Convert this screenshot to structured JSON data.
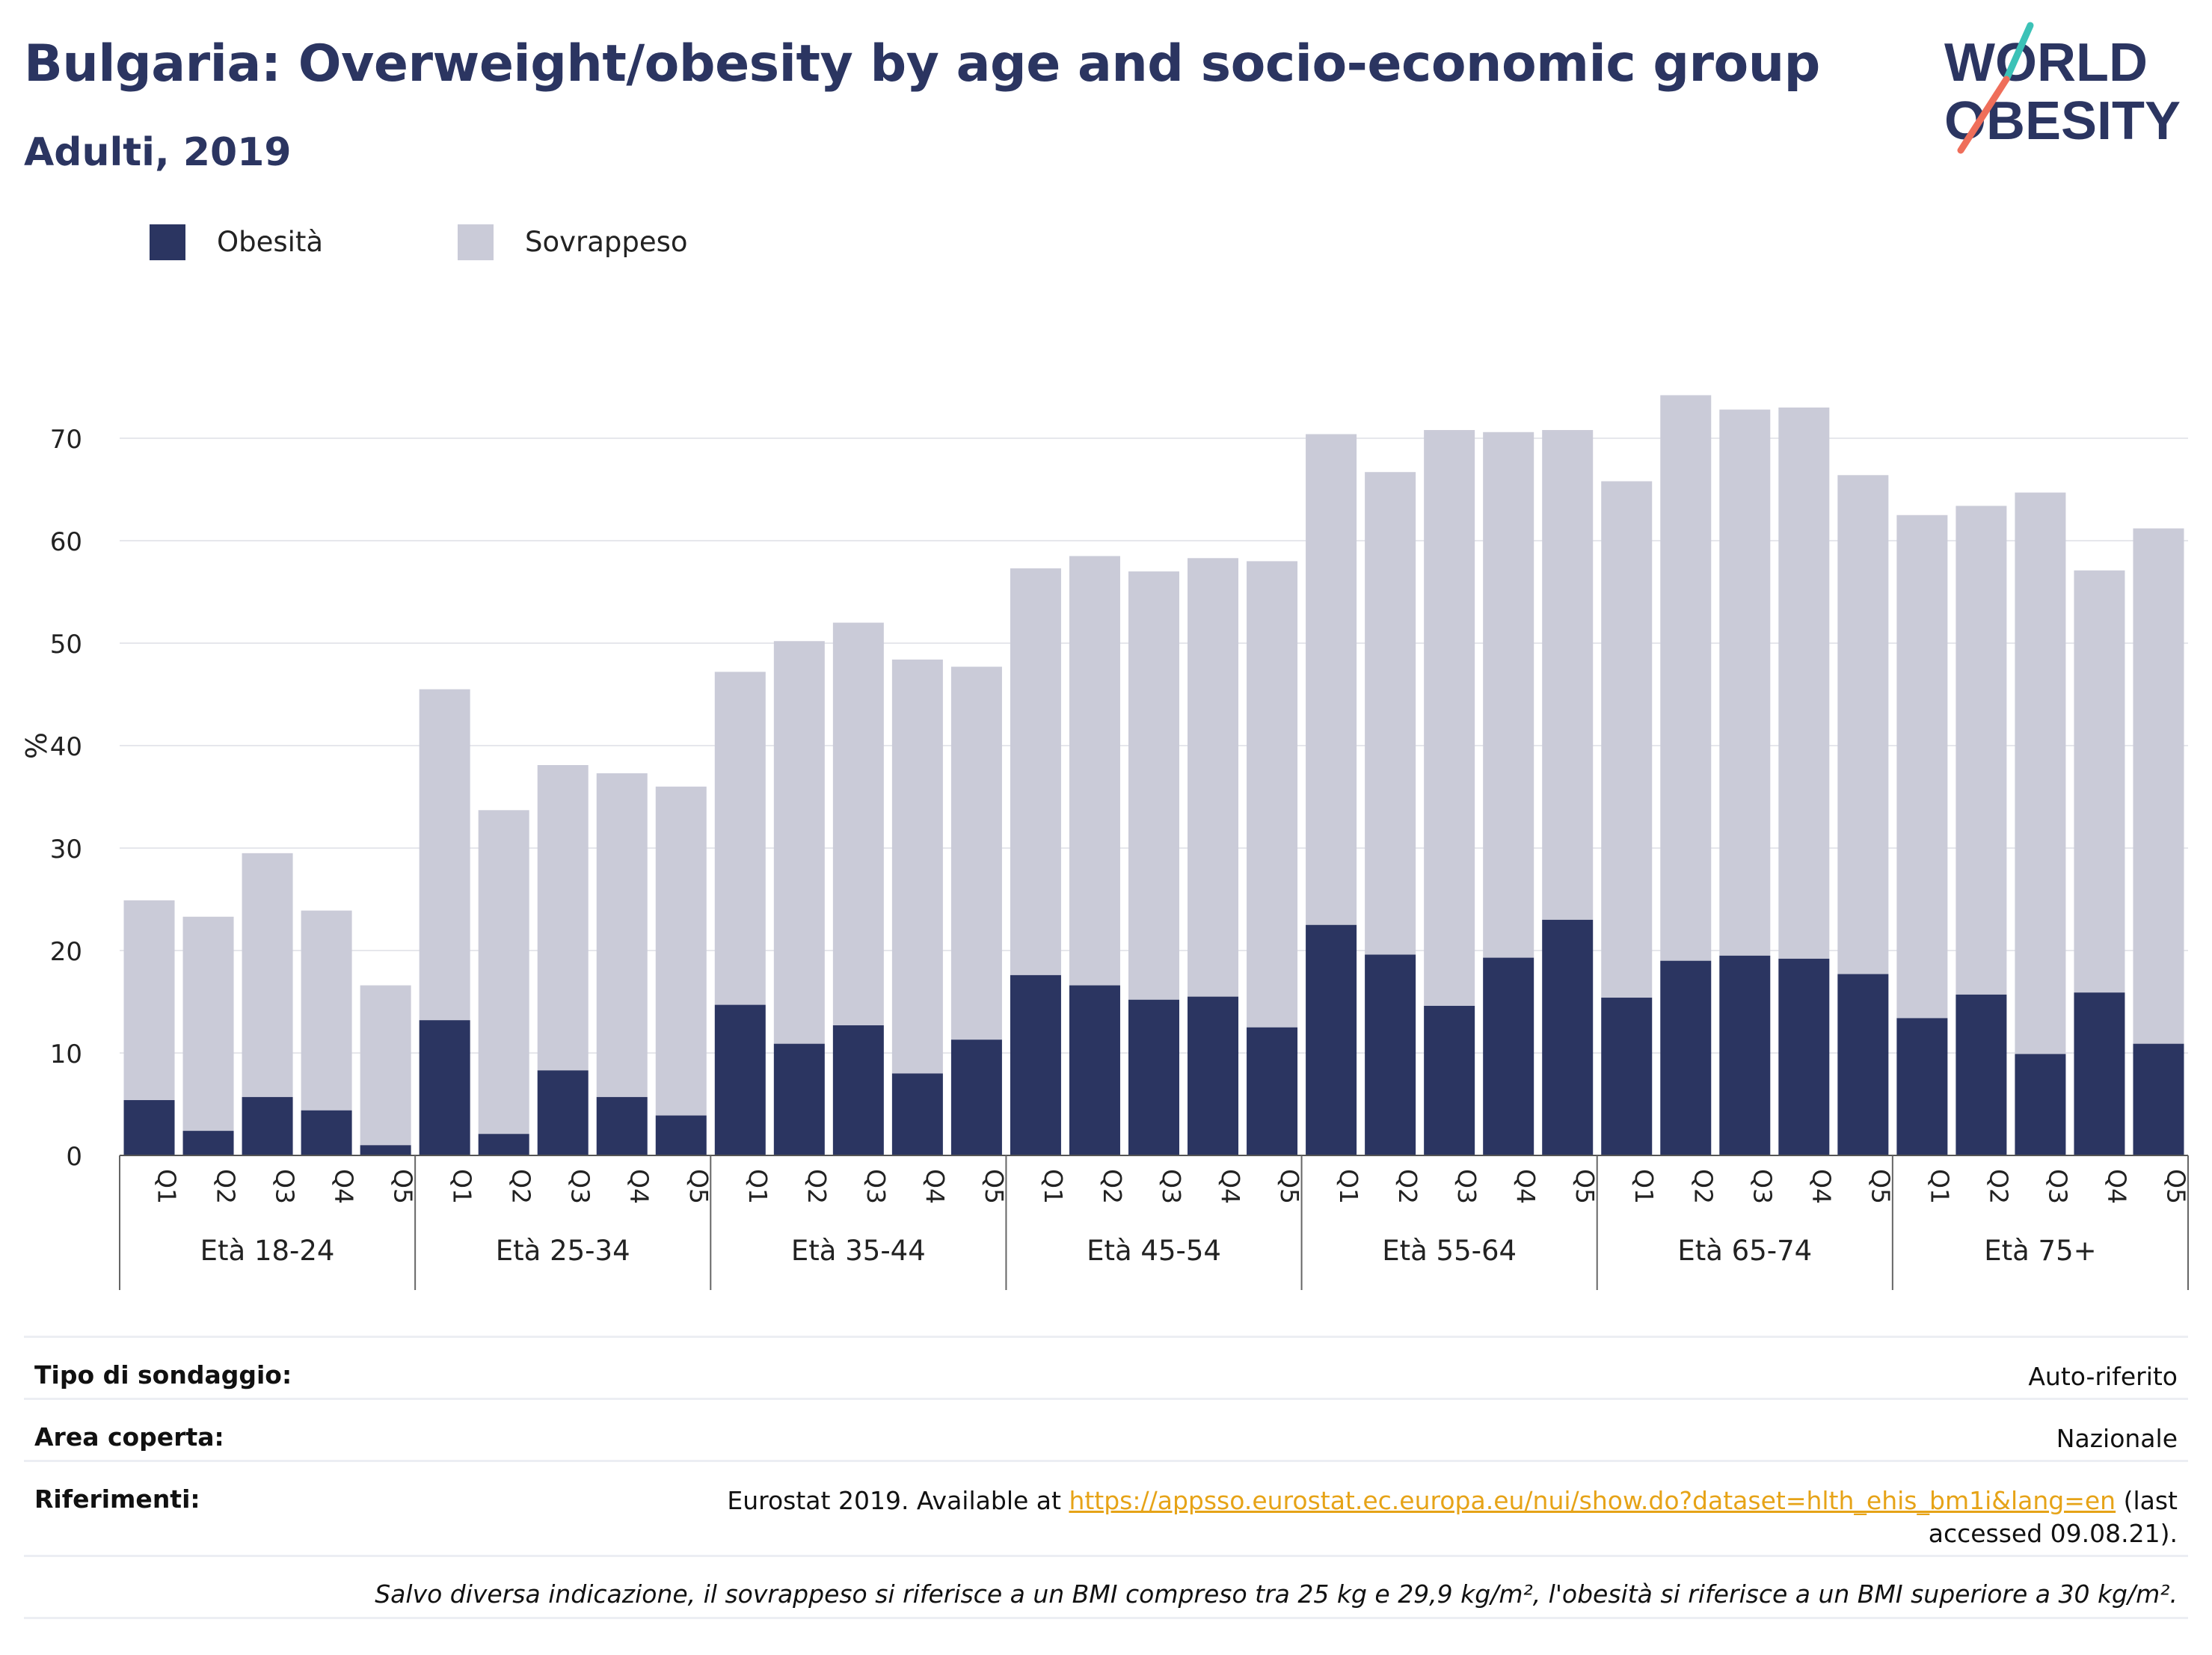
{
  "header": {
    "title": "Bulgaria: Overweight/obesity by age and socio-economic group",
    "subtitle": "Adulti, 2019",
    "logo_line1": "WORLD",
    "logo_line2": "OBESITY"
  },
  "colors": {
    "obesity": "#2b3561",
    "overweight": "#cacbd8",
    "title": "#2b3561",
    "link": "#e6a317",
    "logo_teal": "#3cc2b7",
    "logo_coral": "#ef6e5a"
  },
  "chart_data": {
    "type": "bar",
    "stacked": true,
    "ylabel": "%",
    "ylim": [
      0,
      78
    ],
    "yticks": [
      0,
      10,
      20,
      30,
      40,
      50,
      60,
      70
    ],
    "grid": true,
    "legend_position": "top-left",
    "groups": [
      "Età 18-24",
      "Età 25-34",
      "Età 35-44",
      "Età 45-54",
      "Età 55-64",
      "Età 65-74",
      "Età 75+"
    ],
    "categories": [
      "Q1",
      "Q2",
      "Q3",
      "Q4",
      "Q5"
    ],
    "series": [
      {
        "name": "Obesità",
        "values": [
          [
            5.4,
            2.4,
            5.7,
            4.4,
            1.0
          ],
          [
            13.2,
            2.1,
            8.3,
            5.7,
            3.9
          ],
          [
            14.7,
            10.9,
            12.7,
            8.0,
            11.3
          ],
          [
            17.6,
            16.6,
            15.2,
            15.5,
            12.5
          ],
          [
            22.5,
            19.6,
            14.6,
            19.3,
            23.0
          ],
          [
            15.4,
            19.0,
            19.5,
            19.2,
            17.7
          ],
          [
            13.4,
            15.7,
            9.9,
            15.9,
            10.9
          ]
        ]
      },
      {
        "name": "Sovrappeso",
        "values": [
          [
            19.5,
            20.9,
            23.8,
            19.5,
            15.6
          ],
          [
            32.3,
            31.6,
            29.8,
            31.6,
            32.1
          ],
          [
            32.5,
            39.3,
            39.3,
            40.4,
            36.4
          ],
          [
            39.7,
            41.9,
            41.8,
            42.8,
            45.5
          ],
          [
            47.9,
            47.1,
            56.2,
            51.3,
            47.8
          ],
          [
            50.4,
            55.2,
            53.3,
            53.8,
            48.7
          ],
          [
            49.1,
            47.7,
            54.8,
            41.2,
            50.3
          ]
        ]
      }
    ]
  },
  "info": {
    "survey_type_label": "Tipo di sondaggio:",
    "survey_type_value": "Auto-riferito",
    "area_label": "Area coperta:",
    "area_value": "Nazionale",
    "references_label": "Riferimenti:",
    "references_prefix": "Eurostat 2019. Available at ",
    "references_link": "https://appsso.eurostat.ec.europa.eu/nui/show.do?dataset=hlth_ehis_bm1i&lang=en",
    "references_suffix": " (last accessed 09.08.21).",
    "note": "Salvo diversa indicazione, il sovrappeso si riferisce a un BMI compreso tra 25 kg e 29,9 kg/m², l'obesità si riferisce a un BMI superiore a 30 kg/m²."
  }
}
